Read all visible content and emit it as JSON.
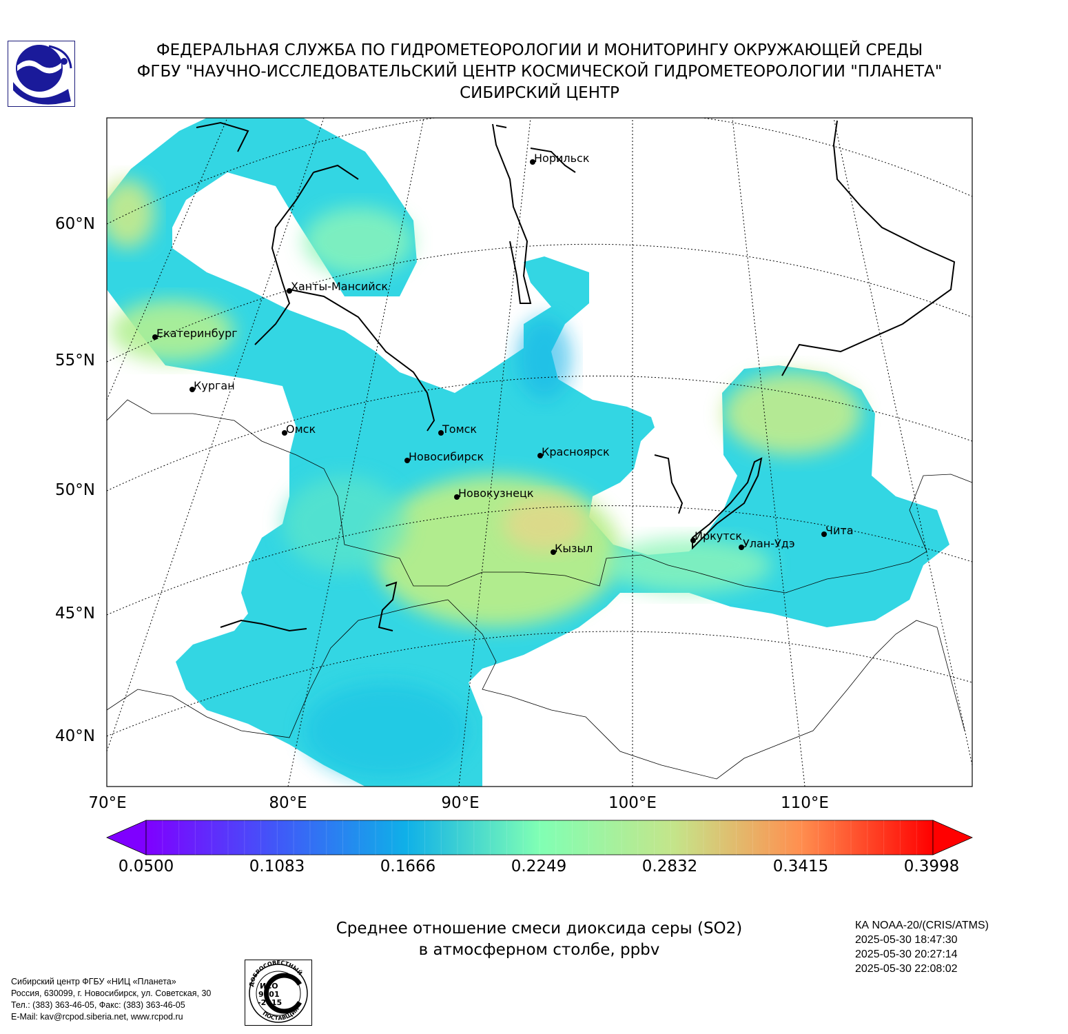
{
  "header": {
    "line1": "ФЕДЕРАЛЬНАЯ СЛУЖБА ПО ГИДРОМЕТЕОРОЛОГИИ И МОНИТОРИНГУ ОКРУЖАЮЩЕЙ СРЕДЫ",
    "line2": "ФГБУ \"НАУЧНО-ИССЛЕДОВАТЕЛЬСКИЙ ЦЕНТР КОСМИЧЕСКОЙ ГИДРОМЕТЕОРОЛОГИИ \"ПЛАНЕТА\"",
    "line3": "СИБИРСКИЙ ЦЕНТР"
  },
  "map": {
    "lat_labels": [
      "60°N",
      "55°N",
      "50°N",
      "45°N",
      "40°N"
    ],
    "lon_labels": [
      "70°E",
      "80°E",
      "90°E",
      "100°E",
      "110°E"
    ],
    "cities": [
      {
        "name": "Норильск"
      },
      {
        "name": "Ханты-Мансийск"
      },
      {
        "name": "Екатеринбург"
      },
      {
        "name": "Курган"
      },
      {
        "name": "Омск"
      },
      {
        "name": "Томск"
      },
      {
        "name": "Новосибирск"
      },
      {
        "name": "Красноярск"
      },
      {
        "name": "Новокузнецк"
      },
      {
        "name": "Кызыл"
      },
      {
        "name": "Иркутск"
      },
      {
        "name": "Улан-Удэ"
      },
      {
        "name": "Чита"
      }
    ]
  },
  "colorbar": {
    "ticks": [
      "0.0500",
      "0.1083",
      "0.1666",
      "0.2249",
      "0.2832",
      "0.3415",
      "0.3998"
    ],
    "min": 0.05,
    "max": 0.3998,
    "extend": "both"
  },
  "caption": {
    "line1": "Среднее отношение смеси диоксида серы (SO2)",
    "line2": "в атмосферном столбе, ppbv"
  },
  "satellite": {
    "name": "КА NOAA-20/(CRIS/ATMS)",
    "times": [
      "2025-05-30 18:47:30",
      "2025-05-30 20:27:14",
      "2025-05-30 22:08:02"
    ]
  },
  "organization": {
    "line1": "Сибирский центр ФГБУ «НИЦ «Планета»",
    "line2": "Россия, 630099, г. Новосибирск, ул. Советская, 30",
    "line3": "Тел.: (383) 363-46-05, Факс: (383) 363-46-05",
    "line4": "E-Mail: kav@rcpod.siberia.net, www.rcpod.ru"
  },
  "iso_badge": {
    "top": "ДОБРОСОВЕСТНЫЙ",
    "l1": "ИСО",
    "l2": "9001",
    "l3": "-2015",
    "bottom": "ПОСТАВЩИК"
  }
}
